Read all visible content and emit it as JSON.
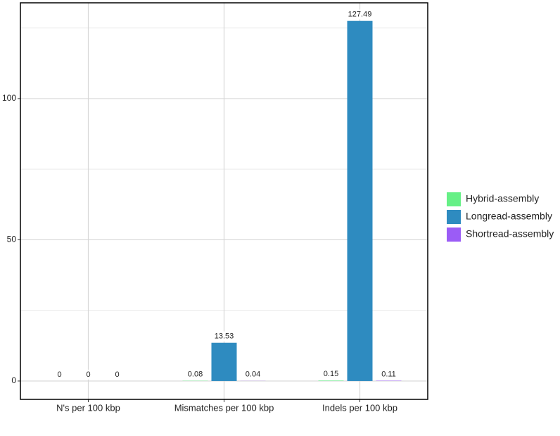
{
  "chart_data": {
    "type": "bar",
    "categories": [
      "N's per 100 kbp",
      "Mismatches per 100 kbp",
      "Indels per 100 kbp"
    ],
    "series": [
      {
        "name": "Hybrid-assembly",
        "color": "#66f086",
        "values": [
          0,
          0.08,
          0.15
        ]
      },
      {
        "name": "Longread-assembly",
        "color": "#2e8bc0",
        "values": [
          0,
          13.53,
          127.49
        ]
      },
      {
        "name": "Shortread-assembly",
        "color": "#9b5cf6",
        "values": [
          0,
          0.04,
          0.11
        ]
      }
    ],
    "ylim": [
      -6.5,
      133.9
    ],
    "yticks": [
      0,
      50,
      100
    ],
    "minor_yticks": [
      25,
      75,
      125
    ],
    "grid": true,
    "legend": "right"
  }
}
